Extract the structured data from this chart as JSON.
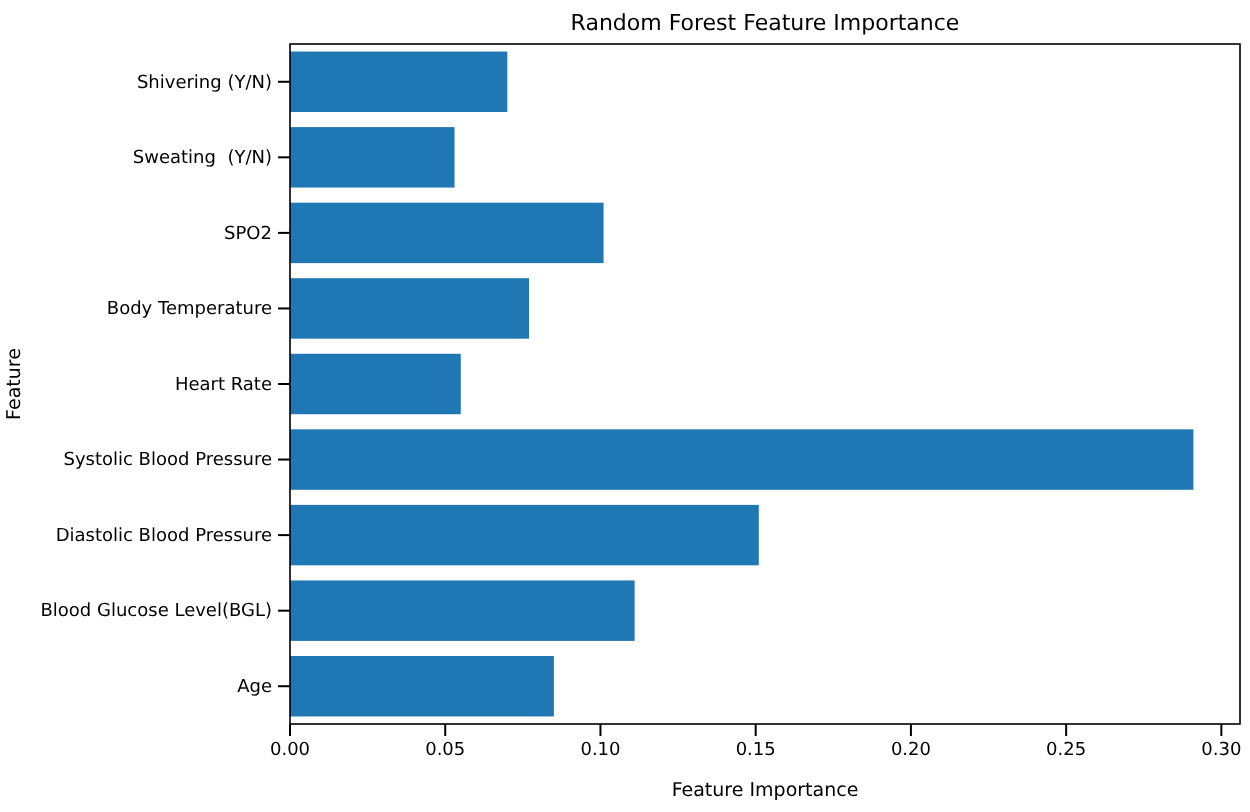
{
  "chart_data": {
    "type": "bar",
    "orientation": "horizontal",
    "title": "Random Forest Feature Importance",
    "xlabel": "Feature Importance",
    "ylabel": "Feature",
    "categories": [
      "Shivering (Y/N)",
      "Sweating  (Y/N)",
      "SPO2",
      "Body Temperature",
      "Heart Rate",
      "Systolic Blood Pressure",
      "Diastolic Blood Pressure",
      "Blood Glucose Level(BGL)",
      "Age"
    ],
    "values": [
      0.07,
      0.053,
      0.101,
      0.077,
      0.055,
      0.291,
      0.151,
      0.111,
      0.085
    ],
    "color": "#1f77b4",
    "xlim": [
      0,
      0.306
    ],
    "xticks": [
      {
        "value": 0,
        "label": "0.00"
      },
      {
        "value": 0.05,
        "label": "0.05"
      },
      {
        "value": 0.1,
        "label": "0.10"
      },
      {
        "value": 0.15,
        "label": "0.15"
      },
      {
        "value": 0.2,
        "label": "0.20"
      },
      {
        "value": 0.25,
        "label": "0.25"
      },
      {
        "value": 0.3,
        "label": "0.30"
      }
    ],
    "grid": false
  }
}
